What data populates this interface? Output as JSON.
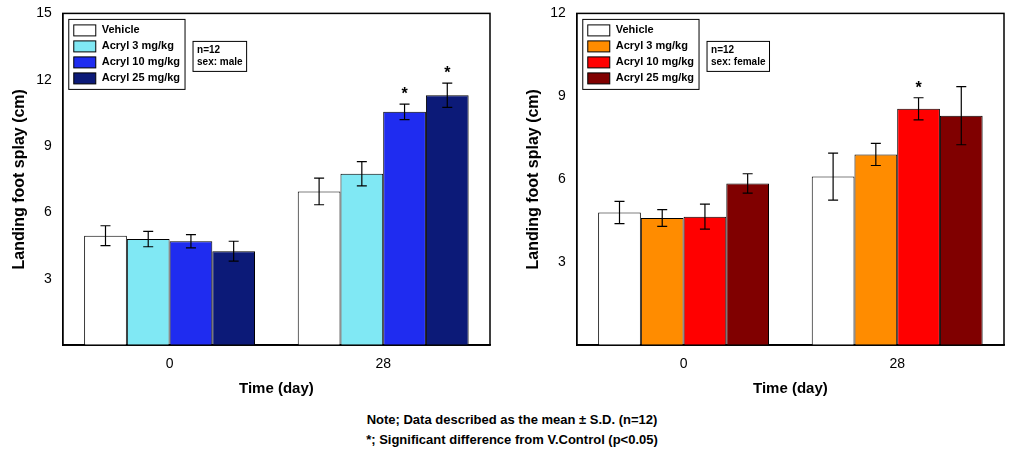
{
  "chart_data": [
    {
      "type": "bar",
      "x_label": "Time (day)",
      "y_label": "Landing foot splay (cm)",
      "categories": [
        "0",
        "28"
      ],
      "series": [
        {
          "name": "Vehicle",
          "color": "#ffffff",
          "values": [
            4.95,
            6.95
          ],
          "errors": [
            0.45,
            0.6
          ]
        },
        {
          "name": "Acryl 3 mg/kg",
          "color": "#80e8f4",
          "values": [
            4.8,
            7.75
          ],
          "errors": [
            0.35,
            0.55
          ]
        },
        {
          "name": "Acryl 10 mg/kg",
          "color": "#1f2cf0",
          "values": [
            4.7,
            10.55
          ],
          "errors": [
            0.3,
            0.35
          ]
        },
        {
          "name": "Acryl 25 mg/kg",
          "color": "#0c1a78",
          "values": [
            4.25,
            11.3
          ],
          "errors": [
            0.45,
            0.55
          ]
        }
      ],
      "annotations": [
        {
          "text": "*",
          "category": "28",
          "series": "Acryl 10 mg/kg"
        },
        {
          "text": "*",
          "category": "28",
          "series": "Acryl 25 mg/kg"
        }
      ],
      "notes": [
        "n=12",
        "sex: male"
      ],
      "ylim": [
        0,
        15
      ],
      "yticks": [
        3,
        6,
        9,
        12,
        15
      ],
      "grid": false,
      "legend": "upper left"
    },
    {
      "type": "bar",
      "x_label": "Time (day)",
      "y_label": "Landing foot splay (cm)",
      "categories": [
        "0",
        "28"
      ],
      "series": [
        {
          "name": "Vehicle",
          "color": "#ffffff",
          "values": [
            4.8,
            6.1
          ],
          "errors": [
            0.4,
            0.85
          ]
        },
        {
          "name": "Acryl 3 mg/kg",
          "color": "#ff8c00",
          "values": [
            4.6,
            6.9
          ],
          "errors": [
            0.3,
            0.4
          ]
        },
        {
          "name": "Acryl 10 mg/kg",
          "color": "#ff0000",
          "values": [
            4.65,
            8.55
          ],
          "errors": [
            0.45,
            0.4
          ]
        },
        {
          "name": "Acryl 25 mg/kg",
          "color": "#800000",
          "values": [
            5.85,
            8.3
          ],
          "errors": [
            0.35,
            1.05
          ]
        }
      ],
      "annotations": [
        {
          "text": "*",
          "category": "28",
          "series": "Acryl 10 mg/kg"
        }
      ],
      "notes": [
        "n=12",
        "sex: female"
      ],
      "ylim": [
        0,
        12
      ],
      "yticks": [
        3,
        6,
        9,
        12
      ],
      "grid": false,
      "legend": "upper left"
    }
  ],
  "footnote": [
    "Note; Data described as the mean ± S.D. (n=12)",
    "*; Significant difference from V.Control (p<0.05)"
  ]
}
